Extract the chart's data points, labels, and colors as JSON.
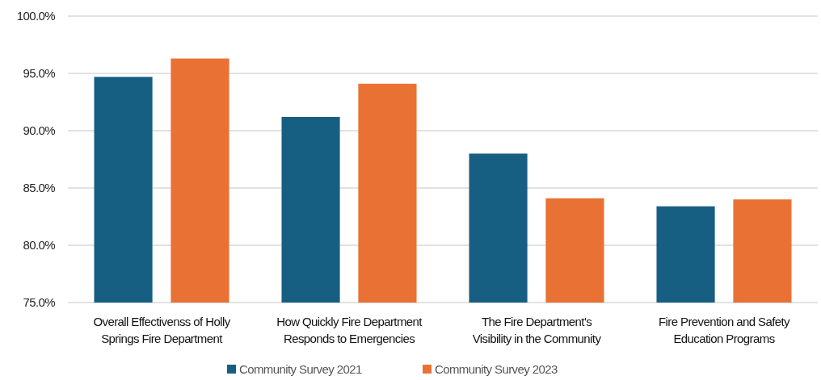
{
  "chart_data": {
    "type": "bar",
    "categories": [
      "Overall Effectivenss of Holly Springs Fire Department",
      "How Quickly Fire Department Responds to Emergencies",
      "The Fire Department's Visibility in the Community",
      "Fire Prevention and Safety Education Programs"
    ],
    "series": [
      {
        "name": "Community Survey 2021",
        "color": "#175f82",
        "values": [
          94.7,
          91.2,
          88.0,
          83.4
        ]
      },
      {
        "name": "Community Survey 2023",
        "color": "#e97133",
        "values": [
          96.3,
          94.1,
          84.1,
          84.0
        ]
      }
    ],
    "ylim": [
      75,
      100
    ],
    "yticks": [
      {
        "value": 75,
        "label": "75.0%"
      },
      {
        "value": 80,
        "label": "80.0%"
      },
      {
        "value": 85,
        "label": "85.0%"
      },
      {
        "value": 90,
        "label": "90.0%"
      },
      {
        "value": 95,
        "label": "95.0%"
      },
      {
        "value": 100,
        "label": "100.0%"
      }
    ],
    "grid": "y",
    "legend": "bottom"
  }
}
